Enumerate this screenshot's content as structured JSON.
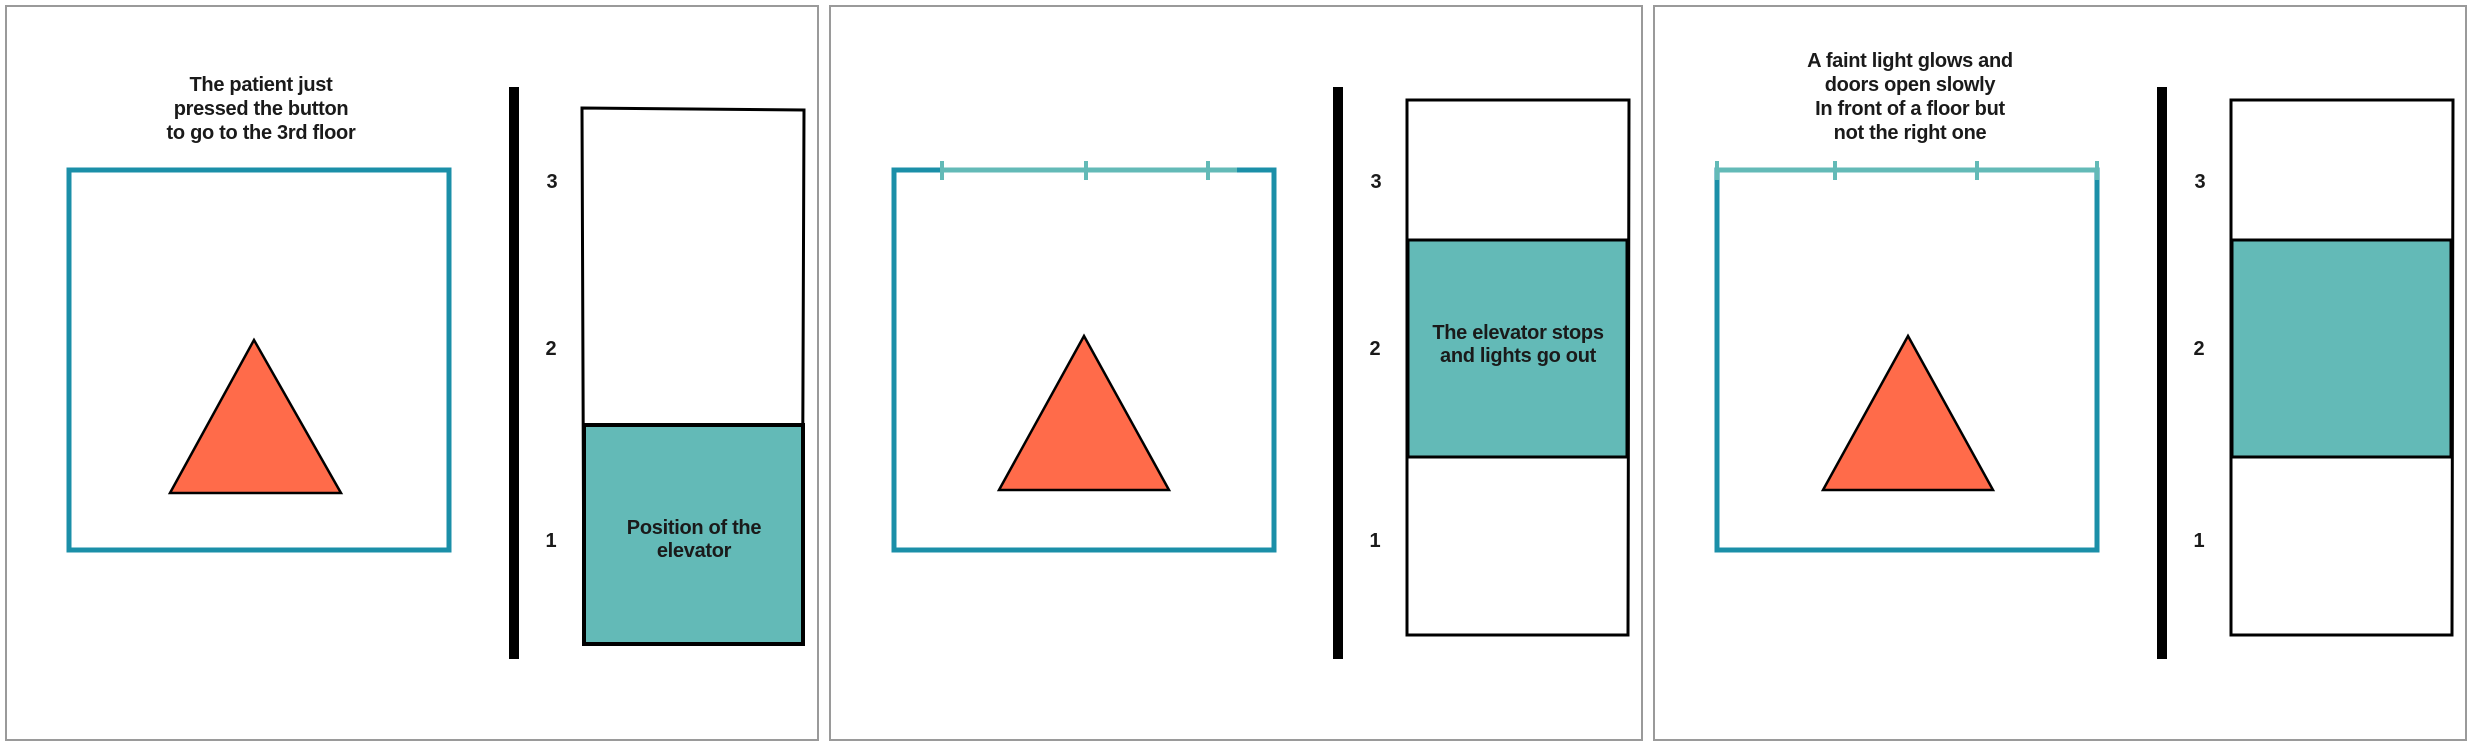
{
  "colors": {
    "frame": "#1b8fa8",
    "door_marks": "#63bab7",
    "cab_fill": "#63bab7",
    "triangle": "#ff6b4a",
    "outline": "#000000",
    "panel_border": "#9a9a9a"
  },
  "panels": [
    {
      "caption": "The patient just\npressed the button\nto go to the 3rd floor",
      "floor_labels": [
        "3",
        "2",
        "1"
      ],
      "cab_label": "Position of the\nelevator",
      "cab_floor": 1
    },
    {
      "caption": "",
      "floor_labels": [
        "3",
        "2",
        "1"
      ],
      "cab_label": "The elevator stops\nand lights go out",
      "cab_floor": 2
    },
    {
      "caption": "A faint light glows and\ndoors open slowly\nIn front of a floor but\nnot the right one",
      "floor_labels": [
        "3",
        "2",
        "1"
      ],
      "cab_label": "",
      "cab_floor": 2
    }
  ]
}
